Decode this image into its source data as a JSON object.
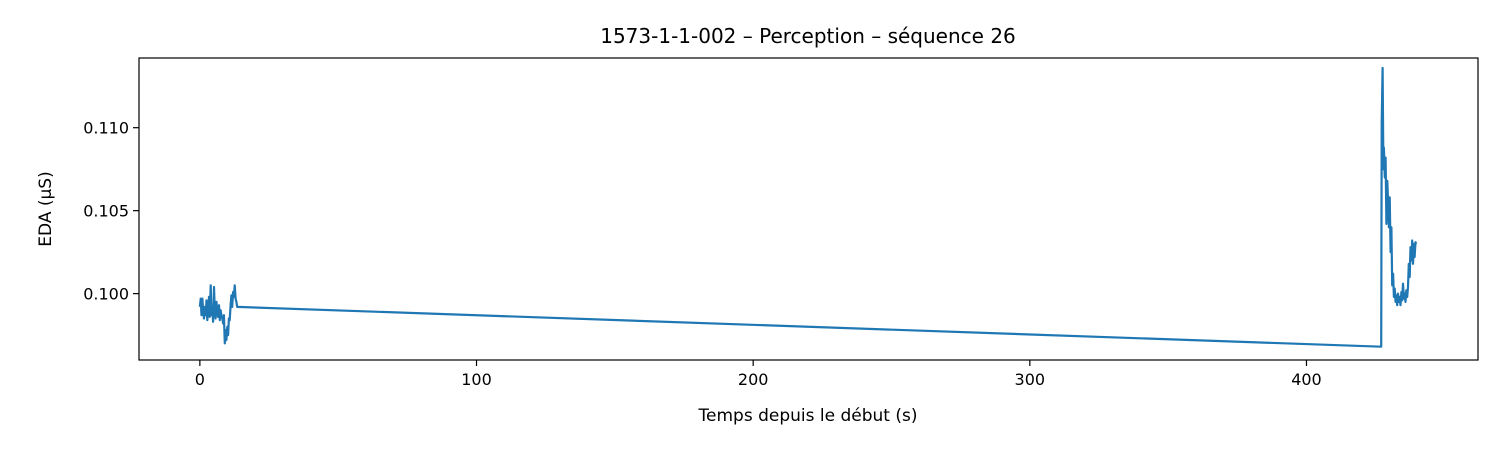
{
  "chart_data": {
    "type": "line",
    "title": "1573-1-1-002 – Perception – séquence 26",
    "xlabel": "Temps depuis le début (s)",
    "ylabel": "EDA (µS)",
    "xlim": [
      -22,
      462
    ],
    "ylim": [
      0.096,
      0.1142
    ],
    "xticks": [
      0,
      100,
      200,
      300,
      400
    ],
    "yticks": [
      0.1,
      0.105,
      0.11
    ],
    "ytick_labels": [
      "0.100",
      "0.105",
      "0.110"
    ],
    "grid": false,
    "line_color": "#1f77b4",
    "series": [
      {
        "x": [
          0,
          0.3,
          0.6,
          0.9,
          1.2,
          1.5,
          1.8,
          2.1,
          2.4,
          2.7,
          3.0,
          3.3,
          3.6,
          3.9,
          4.2,
          4.5,
          4.8,
          5.1,
          5.4,
          5.7,
          6.0,
          6.3,
          6.6,
          6.9,
          7.2,
          7.5,
          7.8,
          8.1,
          8.4,
          8.7,
          9.0,
          9.3,
          9.6,
          9.9,
          10.2,
          10.5,
          10.8,
          11.1,
          11.4,
          11.7,
          12.0,
          12.3,
          12.6,
          12.9,
          13.2,
          13.5,
          427.0,
          427.2,
          427.5,
          427.8,
          428.0,
          428.3,
          428.6,
          428.9,
          429.2,
          429.5,
          429.8,
          430.1,
          430.4,
          430.7,
          431.0,
          431.3,
          431.6,
          431.9,
          432.2,
          432.5,
          432.8,
          433.1,
          433.4,
          433.7,
          434.0,
          434.3,
          434.6,
          434.9,
          435.2,
          435.5,
          435.8,
          436.1,
          436.4,
          436.7,
          437.0,
          437.3,
          437.6,
          437.9,
          438.2,
          438.5,
          438.8,
          439.1,
          439.4,
          439.7
        ],
        "y": [
          0.0992,
          0.0997,
          0.0987,
          0.0997,
          0.0989,
          0.0985,
          0.0992,
          0.0987,
          0.0996,
          0.0984,
          0.099,
          0.0998,
          0.0986,
          0.1005,
          0.0987,
          0.0992,
          0.0983,
          0.1004,
          0.099,
          0.0985,
          0.0995,
          0.0988,
          0.0986,
          0.0993,
          0.0984,
          0.099,
          0.0987,
          0.0985,
          0.0982,
          0.0987,
          0.097,
          0.0978,
          0.0972,
          0.098,
          0.0975,
          0.0985,
          0.0984,
          0.0993,
          0.0999,
          0.0992,
          0.1001,
          0.0998,
          0.1005,
          0.0997,
          0.0995,
          0.0992,
          0.0968,
          0.1103,
          0.1136,
          0.1075,
          0.1088,
          0.107,
          0.1082,
          0.1042,
          0.1068,
          0.1055,
          0.104,
          0.1058,
          0.1025,
          0.104,
          0.1005,
          0.1012,
          0.0998,
          0.1003,
          0.0995,
          0.0999,
          0.0993,
          0.1,
          0.0995,
          0.0998,
          0.0993,
          0.1001,
          0.0996,
          0.1006,
          0.0997,
          0.1,
          0.0995,
          0.1002,
          0.0998,
          0.1004,
          0.1018,
          0.101,
          0.1028,
          0.102,
          0.1032,
          0.1018,
          0.103,
          0.1022,
          0.1031,
          0.103
        ]
      }
    ]
  }
}
